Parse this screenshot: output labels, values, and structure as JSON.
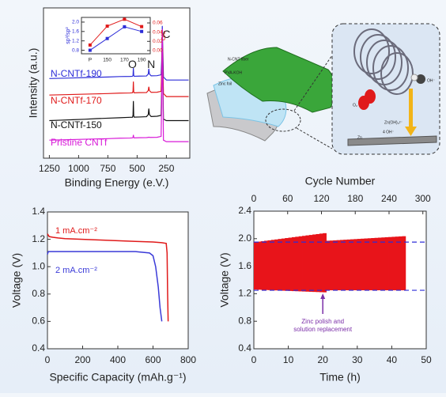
{
  "chart_data": [
    {
      "type": "line",
      "xlabel": "Binding Energy (e.V.)",
      "ylabel": "Intensity (a.u.)",
      "x": [
        1250,
        1150,
        1050,
        950,
        850,
        750,
        650,
        560,
        540,
        535,
        532,
        529,
        525,
        480,
        420,
        405,
        400,
        395,
        380,
        330,
        295,
        290,
        285,
        280,
        275,
        250,
        200,
        150,
        100,
        60
      ],
      "xlim": [
        1300,
        50
      ],
      "xticks": [
        1250,
        1000,
        750,
        500,
        250
      ],
      "ylim": [
        0,
        100
      ],
      "series": [
        {
          "name": "N-CNTf-190",
          "color": "#2d2dd8",
          "values": [
            53,
            53.2,
            53.4,
            53.6,
            53.8,
            54,
            54.3,
            54.4,
            54.5,
            55,
            60,
            55,
            54.5,
            54.6,
            54.7,
            56,
            59.5,
            56,
            54.8,
            54.9,
            55.5,
            65,
            88,
            70,
            54,
            52,
            52,
            52,
            52,
            52
          ]
        },
        {
          "name": "N-CNTf-170",
          "color": "#e01a1a",
          "values": [
            42,
            42.2,
            42.4,
            42.6,
            42.8,
            43,
            43.3,
            43.4,
            43.5,
            44.5,
            51,
            44,
            43.5,
            43.6,
            43.7,
            45,
            47.5,
            45,
            43.8,
            43.9,
            44.5,
            58,
            85,
            62,
            43,
            41,
            41,
            41,
            41,
            41
          ]
        },
        {
          "name": "N-CNTf-150",
          "color": "#111111",
          "values": [
            25,
            25.3,
            25.6,
            25.9,
            26.3,
            26.6,
            26.9,
            27.2,
            27.2,
            28.5,
            38,
            28,
            27.3,
            27.4,
            27.6,
            29,
            33,
            29,
            27.7,
            27.9,
            28.5,
            45,
            80,
            50,
            26,
            25,
            25,
            25,
            25,
            25
          ]
        },
        {
          "name": "Pristine CNTf",
          "color": "#d81ad8",
          "values": [
            12,
            12.2,
            12.4,
            12.6,
            12.8,
            13,
            13.3,
            13.4,
            13.5,
            13.8,
            15.5,
            13.8,
            13.5,
            13.6,
            13.7,
            13.8,
            14,
            13.8,
            13.8,
            13.9,
            14.5,
            40,
            86,
            45,
            12,
            11,
            11,
            11,
            11,
            11
          ]
        }
      ],
      "annotations": [
        {
          "text": "O",
          "x": 540,
          "y": 62
        },
        {
          "text": "N",
          "x": 380,
          "y": 62
        },
        {
          "text": "C",
          "x": 250,
          "y": 82
        }
      ]
    },
    {
      "type": "line",
      "markers": true,
      "ylabel": "sp³/sp²",
      "y2label": "O/C",
      "categories": [
        "P",
        "150",
        "170",
        "190"
      ],
      "ylim": [
        0.65,
        2.2
      ],
      "yticks": [
        0.8,
        1.2,
        1.6,
        {
          "value": 2,
          "label": "2.0"
        }
      ],
      "y2lim": [
        -0.007,
        0.072
      ],
      "y2ticks": [
        {
          "value": 0,
          "label": "0.00"
        },
        {
          "value": 0.02,
          "label": "0.02"
        },
        {
          "value": 0.04,
          "label": "0.04"
        },
        {
          "value": 0.06,
          "label": "0.06"
        }
      ],
      "series": [
        {
          "color": "#2d2dd8",
          "values": [
            0.8,
            1.3,
            1.8,
            1.6
          ]
        },
        {
          "color": "#e01a1a",
          "axis": "y2",
          "values": [
            0.012,
            0.053,
            0.068,
            0.052
          ]
        }
      ]
    },
    {
      "type": "line",
      "xlabel": "Specific Capacity (mAh.g⁻¹)",
      "ylabel": "Voltage (V)",
      "xlim": [
        0,
        800
      ],
      "xticks": [
        0,
        200,
        400,
        600,
        800
      ],
      "ylim": [
        0.4,
        1.4
      ],
      "yticks": [
        0.4,
        0.6,
        0.8,
        {
          "value": 1,
          "label": "1.0"
        },
        1.2,
        1.4
      ],
      "series": [
        {
          "name": "1 mA.cm⁻²",
          "color": "#e01a1a",
          "x": [
            0,
            10,
            30,
            60,
            100,
            200,
            300,
            400,
            500,
            600,
            650,
            675,
            680,
            683,
            686
          ],
          "values": [
            1.24,
            1.22,
            1.215,
            1.21,
            1.205,
            1.2,
            1.195,
            1.19,
            1.185,
            1.18,
            1.175,
            1.17,
            1.1,
            0.8,
            0.6
          ]
        },
        {
          "name": "2 mA.cm⁻²",
          "color": "#3a3ad8",
          "x": [
            0,
            5,
            20,
            100,
            200,
            300,
            400,
            500,
            580,
            600,
            615,
            630,
            640,
            650
          ],
          "values": [
            1.09,
            1.11,
            1.11,
            1.11,
            1.11,
            1.11,
            1.11,
            1.11,
            1.1,
            1.08,
            1,
            0.85,
            0.7,
            0.6
          ]
        }
      ]
    },
    {
      "type": "range",
      "xlabel": "Time (h)",
      "x2label": "Cycle Number",
      "ylabel": "Voltage (V)",
      "xlim": [
        0,
        50
      ],
      "xticks": [
        0,
        10,
        20,
        30,
        40,
        50
      ],
      "x2lim": [
        0,
        306
      ],
      "x2ticks": [
        0,
        60,
        120,
        180,
        240,
        300
      ],
      "ylim": [
        0.4,
        2.4
      ],
      "yticks": [
        0.4,
        0.8,
        1.2,
        1.6,
        {
          "value": 2,
          "label": "2.0"
        },
        2.4
      ],
      "x": [
        0,
        1,
        2,
        3,
        4,
        5,
        6,
        7,
        8,
        9,
        10,
        11,
        12,
        13,
        14,
        15,
        16,
        17,
        18,
        19,
        20,
        21,
        22,
        23,
        24,
        25,
        26,
        27,
        28,
        29,
        30,
        31,
        32,
        33,
        34,
        35,
        36,
        37,
        38,
        39,
        40,
        41,
        42,
        43
      ],
      "series": [
        {
          "color": "#e8141a",
          "values": [
            1.95,
            1.957,
            1.963,
            1.97,
            1.976,
            1.983,
            1.989,
            1.996,
            2.002,
            2.009,
            2.015,
            2.022,
            2.028,
            2.035,
            2.041,
            2.048,
            2.054,
            2.061,
            2.067,
            2.074,
            2.08,
            1.97,
            1.973,
            1.976,
            1.979,
            1.982,
            1.985,
            1.988,
            1.991,
            1.994,
            1.997,
            2.0,
            2.003,
            2.006,
            2.009,
            2.012,
            2.015,
            2.018,
            2.021,
            2.024,
            2.027,
            2.03,
            2.033,
            2.036
          ]
        },
        {
          "color": "#e8141a",
          "values": [
            1.26,
            1.258,
            1.256,
            1.254,
            1.252,
            1.25,
            1.248,
            1.246,
            1.244,
            1.242,
            1.24,
            1.238,
            1.236,
            1.234,
            1.232,
            1.23,
            1.228,
            1.226,
            1.224,
            1.222,
            1.22,
            1.25,
            1.25,
            1.25,
            1.25,
            1.25,
            1.25,
            1.25,
            1.25,
            1.25,
            1.25,
            1.25,
            1.25,
            1.25,
            1.25,
            1.25,
            1.25,
            1.25,
            1.25,
            1.25,
            1.25,
            1.25,
            1.25,
            1.25
          ]
        }
      ],
      "reference_lines": [
        1.95,
        1.25
      ],
      "reference_color": "#2d2dd8",
      "annotation": {
        "lines": [
          "Zinc polish and",
          "solution replacement"
        ],
        "x": 20,
        "color": "#7b2fa8"
      }
    }
  ],
  "diagram": {
    "labels": [
      "N-CNT fiber",
      "PVA-KOH",
      "Zinc foil",
      "O₂",
      "OH⁻",
      "Zn(OH)₄²⁻",
      "4 OH⁻",
      "Zn"
    ]
  }
}
